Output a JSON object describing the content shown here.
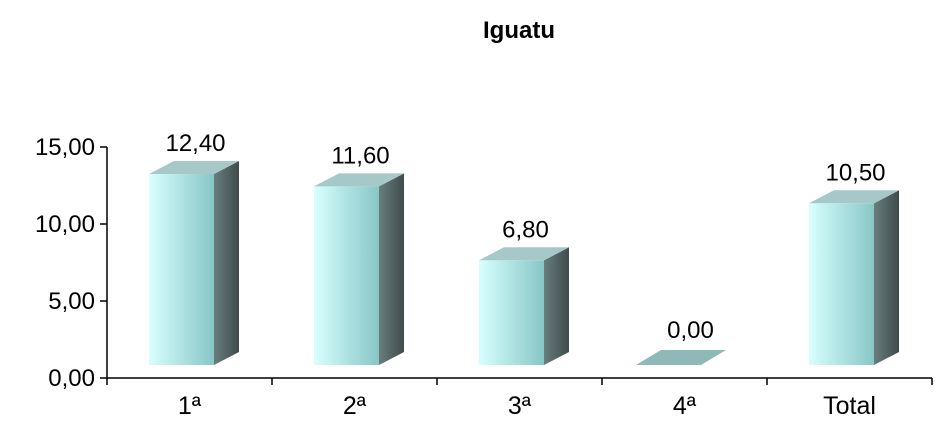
{
  "chart_data": {
    "type": "bar",
    "title": "Iguatu",
    "categories": [
      "1ª",
      "2ª",
      "3ª",
      "4ª",
      "Total"
    ],
    "values": [
      12.4,
      11.6,
      6.8,
      0.0,
      10.5
    ],
    "data_labels": [
      "12,40",
      "11,60",
      "6,80",
      "0,00",
      "10,50"
    ],
    "y_ticks": [
      {
        "value": 0,
        "label": "0,00"
      },
      {
        "value": 5,
        "label": "5,00"
      },
      {
        "value": 10,
        "label": "10,00"
      },
      {
        "value": 15,
        "label": "15,00"
      }
    ],
    "ylim": [
      0,
      15
    ],
    "xlabel": "",
    "ylabel": "",
    "grid": false,
    "legend": "none",
    "colors": {
      "bar_front_light": "#d8ffff",
      "bar_front_dark": "#88c6c6",
      "bar_side": "#4a5a5a",
      "bar_top": "#a6c8c8",
      "axis": "#000000"
    }
  }
}
